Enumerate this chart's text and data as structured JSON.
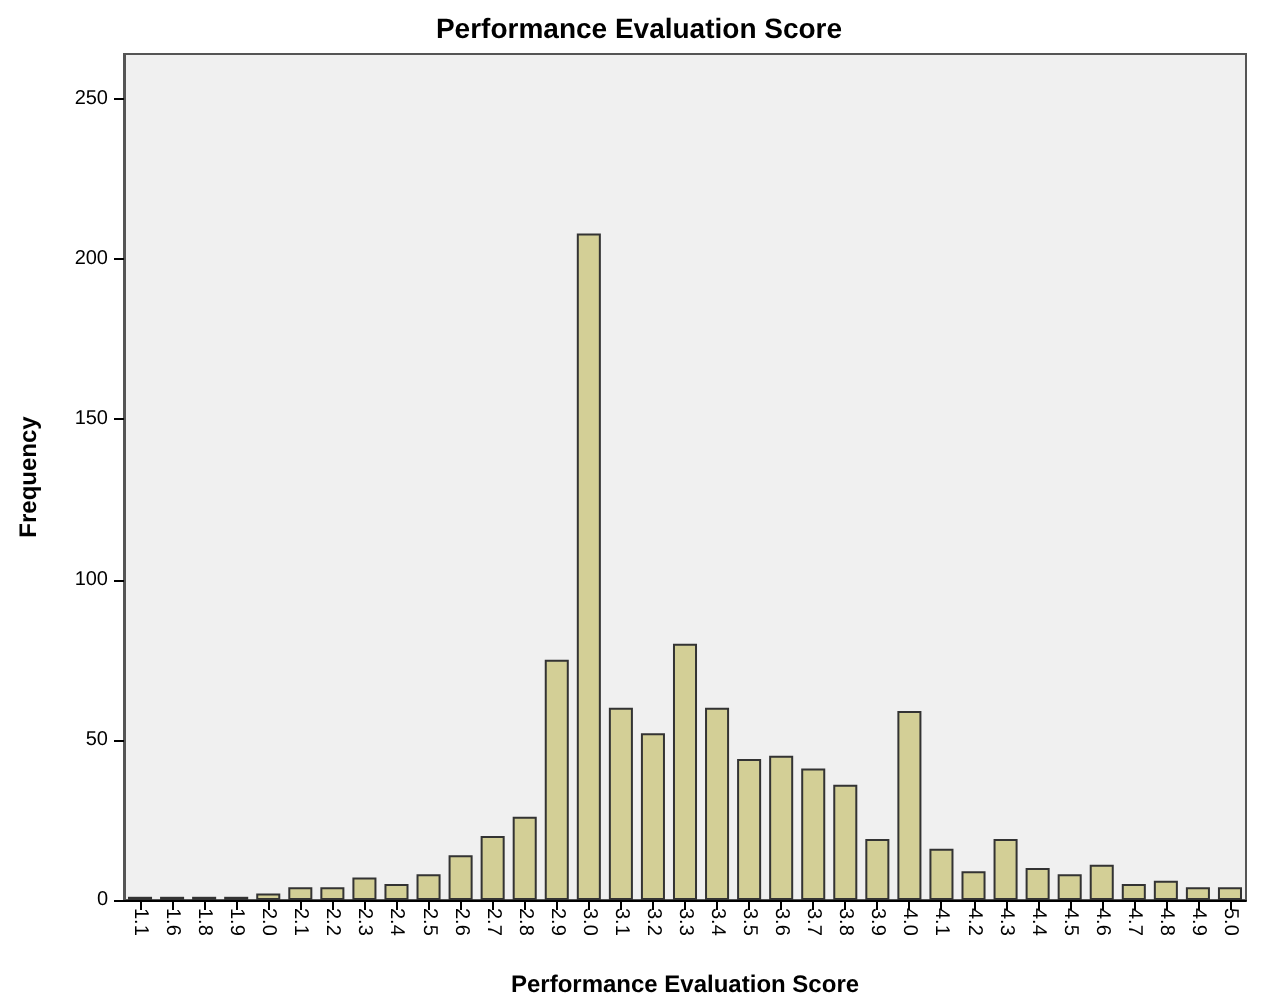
{
  "chart_data": {
    "type": "bar",
    "title": "Performance Evaluation Score",
    "xlabel": "Performance Evaluation Score",
    "ylabel": "Frequency",
    "categories": [
      "1.1",
      "1.6",
      "1.8",
      "1.9",
      "2.0",
      "2.1",
      "2.2",
      "2.3",
      "2.4",
      "2.5",
      "2.6",
      "2.7",
      "2.8",
      "2.9",
      "3.0",
      "3.1",
      "3.2",
      "3.3",
      "3.4",
      "3.5",
      "3.6",
      "3.7",
      "3.8",
      "3.9",
      "4.0",
      "4.1",
      "4.2",
      "4.3",
      "4.4",
      "4.5",
      "4.6",
      "4.7",
      "4.8",
      "4.9",
      "5.0"
    ],
    "values": [
      1,
      1,
      1,
      1,
      2,
      4,
      4,
      7,
      5,
      8,
      14,
      20,
      26,
      75,
      208,
      60,
      52,
      80,
      60,
      44,
      45,
      41,
      36,
      19,
      59,
      16,
      9,
      19,
      10,
      8,
      11,
      5,
      6,
      4,
      4
    ],
    "color": "#d3cf96",
    "ylim": [
      0,
      264
    ],
    "yticks": [
      0,
      50,
      100,
      150,
      200,
      250
    ],
    "grid": false
  }
}
